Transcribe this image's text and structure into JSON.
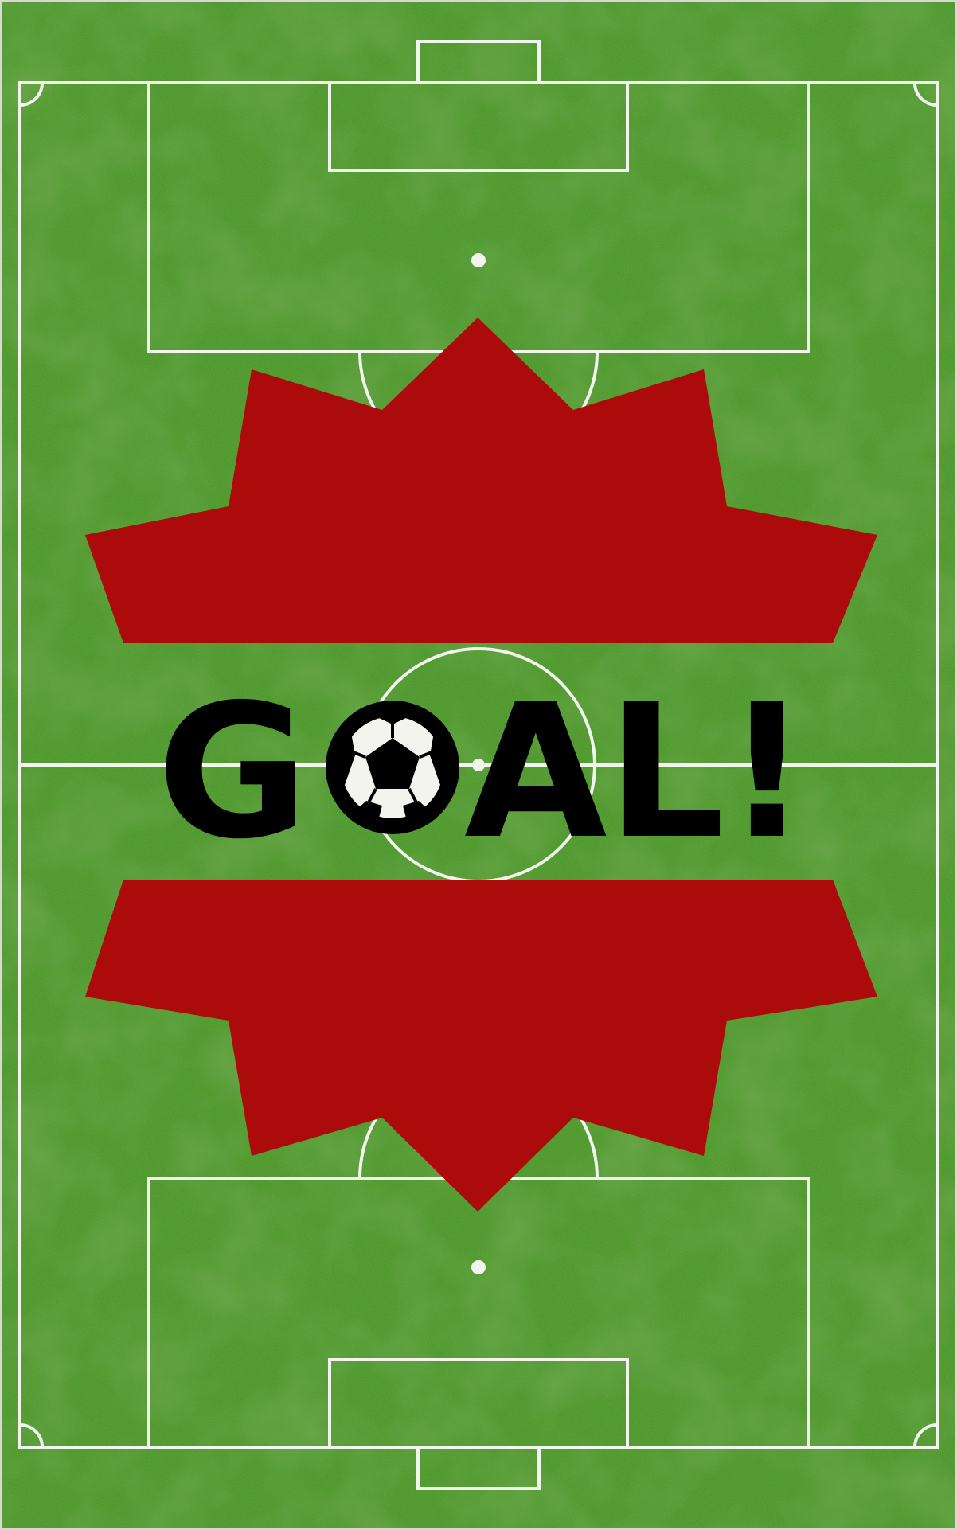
{
  "poster": {
    "headline_before_ball": "G",
    "headline_after_ball": "AL!",
    "headline_full": "GOAL!",
    "ball_icon": "soccer-ball-icon",
    "colors": {
      "grass_base": "#4e9a2b",
      "grass_dark": "#3f8622",
      "grass_light": "#5aa834",
      "pitch_lines": "#f2f5ee",
      "burst": "#ac0b0b",
      "headline": "#000000",
      "border": "#d8d8d8"
    }
  }
}
